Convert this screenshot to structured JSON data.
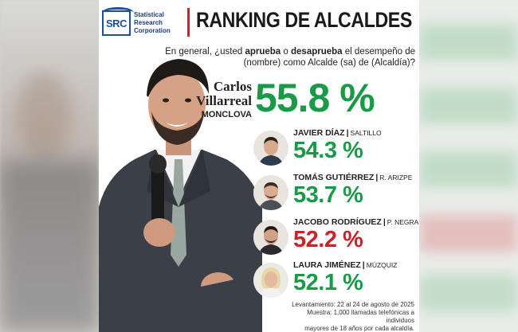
{
  "brand": {
    "logo_abbr": "SRC",
    "logo_lines": [
      "Statistical",
      "Research",
      "Corporation"
    ]
  },
  "title": "RANKING DE ALCALDES",
  "question": {
    "part1": "En general, ¿usted ",
    "approve": "aprueba",
    "part2": " o ",
    "disapprove": "desaprueba",
    "part3": " el desempeño de (nombre) como Alcalde (sa) de (Alcaldía)?"
  },
  "leader": {
    "first_name": "Carlos",
    "last_name": "Villarreal",
    "city": "MONCLOVA",
    "approval": "55.8 %"
  },
  "candidates": [
    {
      "name": "JAVIER DÍAZ",
      "city": "SALTILLO",
      "approval": "54.3 %",
      "color": "#1a9a47"
    },
    {
      "name": "TOMÁS GUTIÉRREZ",
      "city": "R. ARIZPE",
      "approval": "53.7 %",
      "color": "#1a9a47"
    },
    {
      "name": "JACOBO RODRÍGUEZ",
      "city": "P. NEGRAS",
      "approval": "52.2 %",
      "color": "#c92229"
    },
    {
      "name": "LAURA JIMÉNEZ",
      "city": "MÚZQUIZ",
      "approval": "52.1 %",
      "color": "#1a9a47"
    }
  ],
  "footer": {
    "line1": "Levantamiento: 22 al 24 de agosto de 2025",
    "line2": "Muestra: 1,000 llamadas telefónicas a individuos",
    "line3": "mayores de 18 años por cada alcaldía."
  },
  "colors": {
    "green": "#1a9a47",
    "red": "#c92229",
    "brand_blue": "#1b4f9b",
    "divider_red": "#d62027"
  }
}
